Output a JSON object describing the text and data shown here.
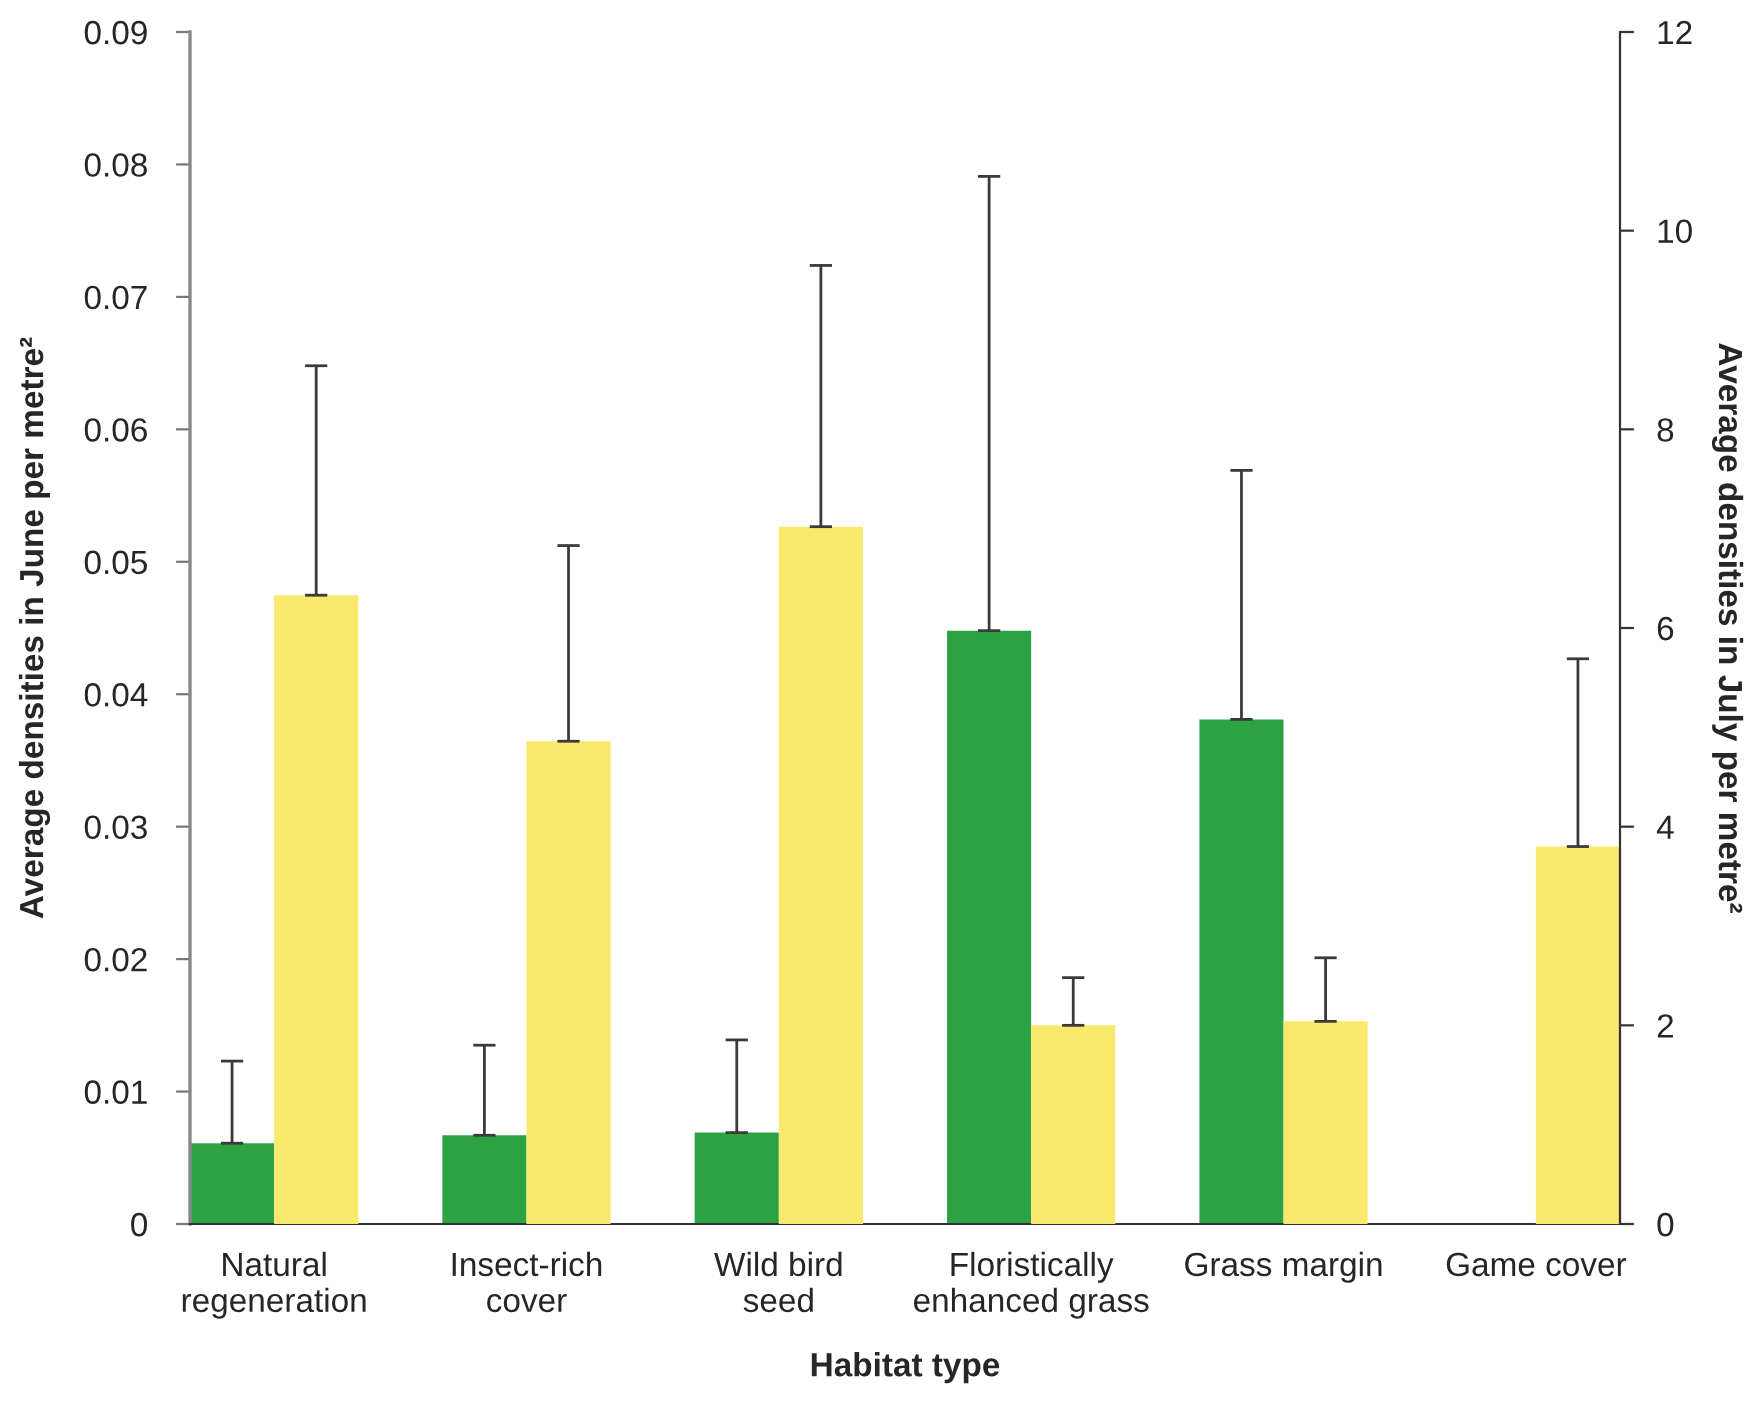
{
  "chart_data": {
    "type": "bar",
    "xlabel": "Habitat type",
    "ylabel": "Average densities in June per metre²",
    "y2label": "Average densities in July per metre²",
    "categories": [
      "Natural\nregeneration",
      "Insect-rich\ncover",
      "Wild bird\nseed",
      "Floristically\nenhanced grass",
      "Grass margin",
      "Game cover"
    ],
    "series": [
      {
        "color": "#2ca243",
        "axis": "y",
        "values": [
          0.0061,
          0.0067,
          0.0069,
          0.0448,
          0.0381,
          0
        ],
        "errors": [
          [
            0.0061,
            0.0123
          ],
          [
            0.0067,
            0.0135
          ],
          [
            0.0069,
            0.0139
          ],
          [
            0.0448,
            0.0791
          ],
          [
            0.0381,
            0.0569
          ],
          null
        ]
      },
      {
        "color": "#f9e96c",
        "axis": "y2",
        "values": [
          6.33,
          4.86,
          7.02,
          2.0,
          2.04,
          3.8
        ],
        "errors": [
          [
            6.33,
            8.64
          ],
          [
            4.86,
            6.83
          ],
          [
            7.02,
            9.65
          ],
          [
            2.0,
            2.48
          ],
          [
            2.04,
            2.68
          ],
          [
            3.8,
            5.69
          ]
        ]
      }
    ],
    "ylim": [
      0,
      0.09
    ],
    "yticks": [
      0,
      0.01,
      0.02,
      0.03,
      0.04,
      0.05,
      0.06,
      0.07,
      0.08,
      0.09
    ],
    "y2lim": [
      0,
      12
    ],
    "y2ticks": [
      0,
      2,
      4,
      6,
      8,
      10,
      12
    ]
  }
}
